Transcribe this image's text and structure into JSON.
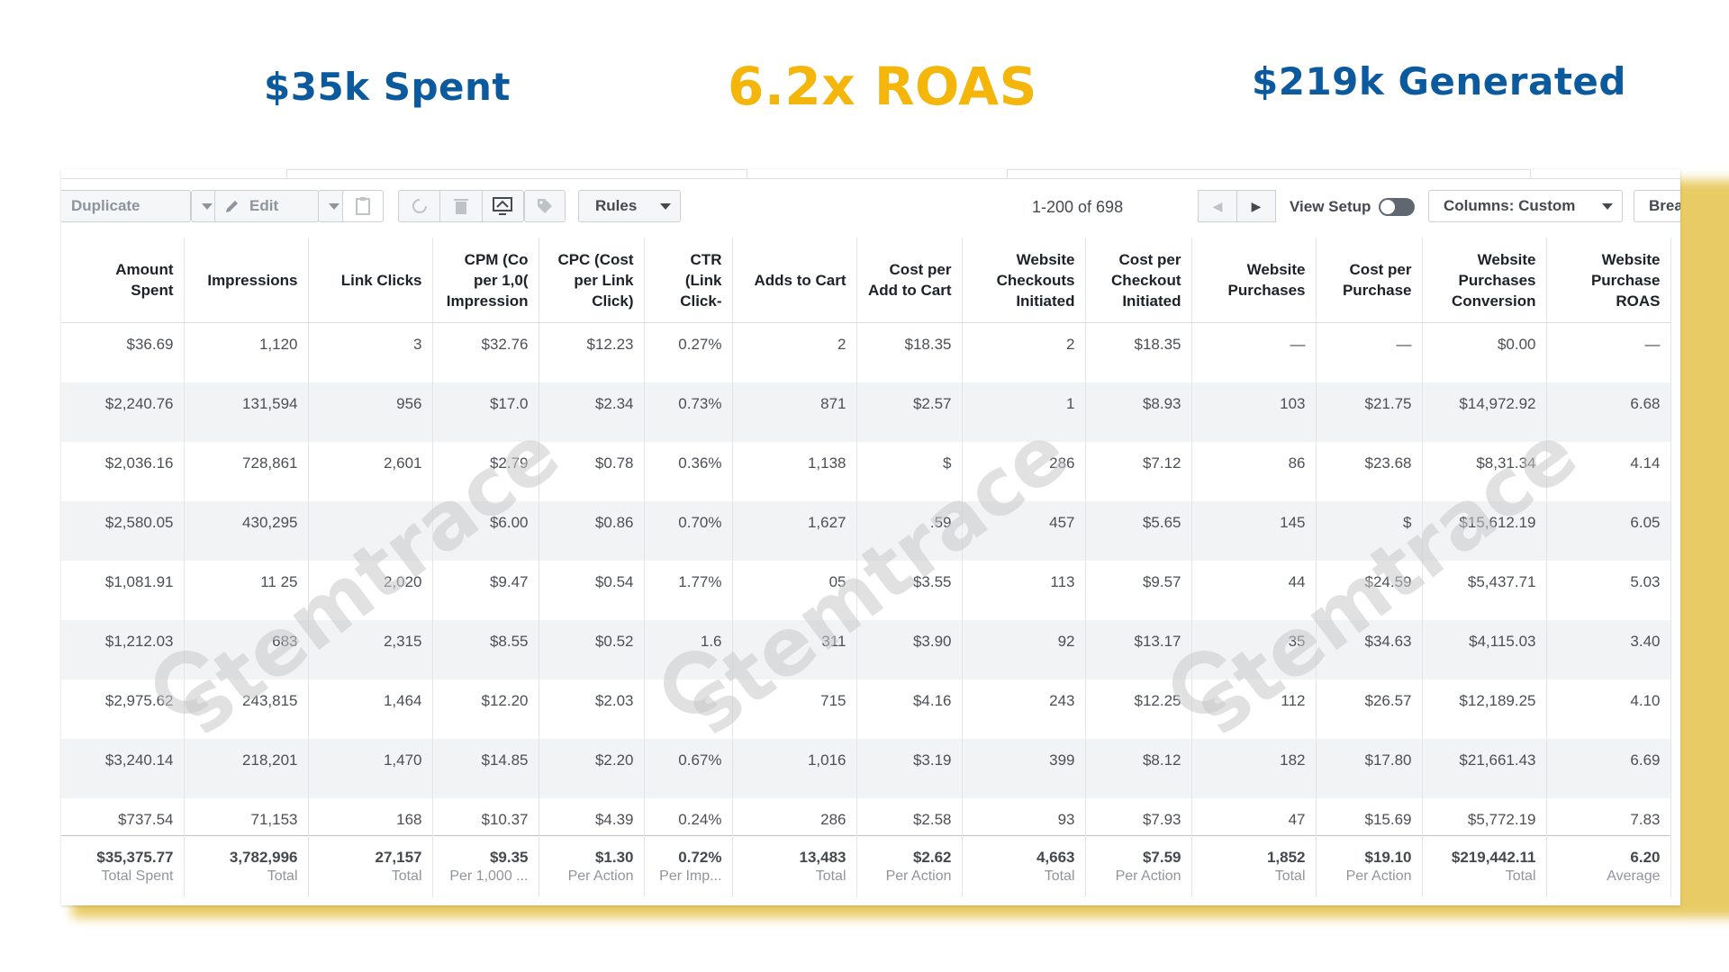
{
  "headlines": {
    "spent": "$35k Spent",
    "roas": "6.2x ROAS",
    "generated": "$219k Generated"
  },
  "colors": {
    "headline_blue": "#0b5a9e",
    "headline_gold": "#f5b60c",
    "frame_gold": "#e4c24a"
  },
  "toolbar": {
    "duplicate_label": "Duplicate",
    "edit_label": "Edit",
    "rules_label": "Rules",
    "pagination": "1-200 of 698",
    "view_setup_label": "View Setup",
    "columns_label": "Columns: Custom",
    "breakdown_label": "Breakdown",
    "icons": [
      "chevron-down-icon",
      "pencil-icon",
      "clipboard-icon",
      "refresh-icon",
      "trash-icon",
      "compare-icon",
      "tag-icon",
      "chevron-left-icon",
      "chevron-right-icon"
    ]
  },
  "watermark": "stemtrace",
  "table": {
    "headers": [
      "Amount Spent",
      "Impressions",
      "Link Clicks",
      "CPM (Co per 1,0( Impression",
      "CPC (Cost per Link Click)",
      "CTR (Link Click-",
      "Adds to Cart",
      "Cost per Add to Cart",
      "Website Checkouts Initiated",
      "Cost per Checkout Initiated",
      "Website Purchases",
      "Cost per Purchase",
      "Website Purchases Conversion",
      "Website Purchase ROAS"
    ],
    "rows": [
      [
        "$36.69",
        "1,120",
        "3",
        "$32.76",
        "$12.23",
        "0.27%",
        "2",
        "$18.35",
        "2",
        "$18.35",
        "—",
        "—",
        "$0.00",
        "—"
      ],
      [
        "$2,240.76",
        "131,594",
        "956",
        "$17.0",
        "$2.34",
        "0.73%",
        "871",
        "$2.57",
        "1",
        "$8.93",
        "103",
        "$21.75",
        "$14,972.92",
        "6.68"
      ],
      [
        "$2,036.16",
        "728,861",
        "2,601",
        "$2.79",
        "$0.78",
        "0.36%",
        "1,138",
        "$",
        "286",
        "$7.12",
        "86",
        "$23.68",
        "$8,31.34",
        "4.14"
      ],
      [
        "$2,580.05",
        "430,295",
        "",
        "$6.00",
        "$0.86",
        "0.70%",
        "1,627",
        ".59",
        "457",
        "$5.65",
        "145",
        "$",
        "$15,612.19",
        "6.05"
      ],
      [
        "$1,081.91",
        "11 25",
        "2,020",
        "$9.47",
        "$0.54",
        "1.77%",
        "05",
        "$3.55",
        "113",
        "$9.57",
        "44",
        "$24.59",
        "$5,437.71",
        "5.03"
      ],
      [
        "$1,212.03",
        "683",
        "2,315",
        "$8.55",
        "$0.52",
        "1.6",
        "311",
        "$3.90",
        "92",
        "$13.17",
        "35",
        "$34.63",
        "$4,115.03",
        "3.40"
      ],
      [
        "$2,975.62",
        "243,815",
        "1,464",
        "$12.20",
        "$2.03",
        "",
        "715",
        "$4.16",
        "243",
        "$12.25",
        "112",
        "$26.57",
        "$12,189.25",
        "4.10"
      ],
      [
        "$3,240.14",
        "218,201",
        "1,470",
        "$14.85",
        "$2.20",
        "0.67%",
        "1,016",
        "$3.19",
        "399",
        "$8.12",
        "182",
        "$17.80",
        "$21,661.43",
        "6.69"
      ],
      [
        "$737.54",
        "71,153",
        "168",
        "$10.37",
        "$4.39",
        "0.24%",
        "286",
        "$2.58",
        "93",
        "$7.93",
        "47",
        "$15.69",
        "$5,772.19",
        "7.83"
      ]
    ],
    "totals": [
      [
        "$35,375.77",
        "Total Spent"
      ],
      [
        "3,782,996",
        "Total"
      ],
      [
        "27,157",
        "Total"
      ],
      [
        "$9.35",
        "Per 1,000 ..."
      ],
      [
        "$1.30",
        "Per Action"
      ],
      [
        "0.72%",
        "Per Imp..."
      ],
      [
        "13,483",
        "Total"
      ],
      [
        "$2.62",
        "Per Action"
      ],
      [
        "4,663",
        "Total"
      ],
      [
        "$7.59",
        "Per Action"
      ],
      [
        "1,852",
        "Total"
      ],
      [
        "$19.10",
        "Per Action"
      ],
      [
        "$219,442.11",
        "Total"
      ],
      [
        "6.20",
        "Average"
      ]
    ]
  }
}
